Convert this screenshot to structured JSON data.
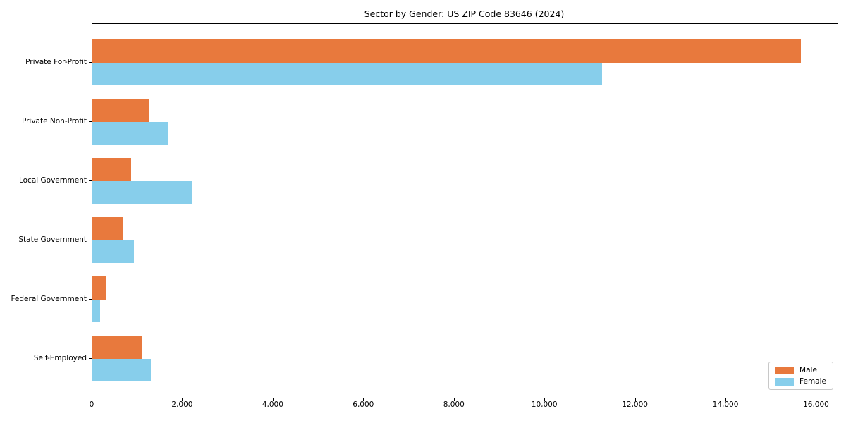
{
  "title": "Sector by Gender: US ZIP Code 83646 (2024)",
  "colors": {
    "male": "#e8793d",
    "female": "#87ceeb",
    "axis": "#000000",
    "legend_border": "#c8c8c8",
    "background": "#ffffff"
  },
  "legend": {
    "position": "lower right",
    "items": [
      {
        "label": "Male",
        "color_key": "male"
      },
      {
        "label": "Female",
        "color_key": "female"
      }
    ]
  },
  "chart_data": {
    "type": "bar",
    "orientation": "horizontal",
    "title": "Sector by Gender: US ZIP Code 83646 (2024)",
    "categories": [
      "Private For-Profit",
      "Private Non-Profit",
      "Local Government",
      "State Government",
      "Federal Government",
      "Self-Employed"
    ],
    "series": [
      {
        "name": "Male",
        "color": "#e8793d",
        "values": [
          15650,
          1250,
          860,
          690,
          300,
          1090
        ]
      },
      {
        "name": "Female",
        "color": "#87ceeb",
        "values": [
          11260,
          1680,
          2190,
          920,
          170,
          1290
        ]
      }
    ],
    "xlabel": "",
    "ylabel": "",
    "xlim": [
      0,
      16460
    ],
    "x_tick_values": [
      0,
      2000,
      4000,
      6000,
      8000,
      10000,
      12000,
      14000,
      16000
    ],
    "x_tick_labels": [
      "0",
      "2,000",
      "4,000",
      "6,000",
      "8,000",
      "10,000",
      "12,000",
      "14,000",
      "16,000"
    ],
    "grid": false,
    "legend_position": "lower right"
  }
}
